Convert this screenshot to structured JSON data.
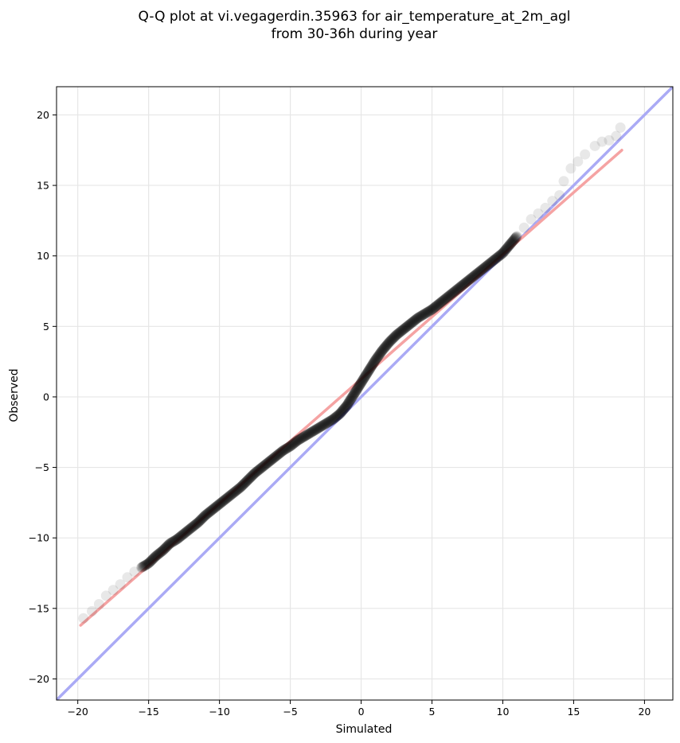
{
  "chart_data": {
    "type": "scatter",
    "title": [
      "Q-Q plot at vi.vegagerdin.35963 for air_temperature_at_2m_agl",
      "from 30-36h during year"
    ],
    "xlabel": "Simulated",
    "ylabel": "Observed",
    "xlim": [
      -21.5,
      22
    ],
    "ylim": [
      -21.5,
      22
    ],
    "xticks": [
      -20,
      -15,
      -10,
      -5,
      0,
      5,
      10,
      15,
      20
    ],
    "yticks": [
      -20,
      -15,
      -10,
      -5,
      0,
      5,
      10,
      15,
      20
    ],
    "xtick_labels": [
      "−20",
      "−15",
      "−10",
      "−5",
      "0",
      "5",
      "10",
      "15",
      "20"
    ],
    "ytick_labels": [
      "−20",
      "−15",
      "−10",
      "−5",
      "0",
      "5",
      "10",
      "15",
      "20"
    ],
    "grid": true,
    "reference_lines": [
      {
        "name": "",
        "color": "#aaaaf5",
        "x": [
          -21.5,
          22
        ],
        "y": [
          -21.5,
          22
        ]
      },
      {
        "name": "",
        "color": "#f5a3a3",
        "x": [
          -19.8,
          18.4
        ],
        "y": [
          -16.2,
          17.5
        ]
      }
    ],
    "quantile_points": {
      "color": "#000000",
      "x": [
        -19.6,
        -19.0,
        -18.5,
        -18.0,
        -17.5,
        -17.0,
        -16.5,
        -16.0,
        -15.5,
        -15.0,
        -14.5,
        -14.0,
        -13.5,
        -13.0,
        -12.5,
        -12.0,
        -11.5,
        -11.0,
        -10.5,
        -10.0,
        -9.5,
        -9.0,
        -8.5,
        -8.0,
        -7.5,
        -7.0,
        -6.5,
        -6.0,
        -5.5,
        -5.0,
        -4.5,
        -4.0,
        -3.5,
        -3.0,
        -2.5,
        -2.0,
        -1.5,
        -1.0,
        -0.5,
        0.0,
        0.5,
        1.0,
        1.5,
        2.0,
        2.5,
        3.0,
        3.5,
        4.0,
        4.5,
        5.0,
        5.5,
        6.0,
        6.5,
        7.0,
        7.5,
        8.0,
        8.5,
        9.0,
        9.5,
        10.0,
        10.5,
        11.0,
        11.5,
        12.0,
        12.5,
        13.0,
        13.5,
        14.0,
        14.3,
        14.8,
        15.3,
        15.8,
        16.5,
        17.0,
        17.5,
        18.0,
        18.3
      ],
      "y": [
        -15.7,
        -15.2,
        -14.7,
        -14.1,
        -13.7,
        -13.3,
        -12.8,
        -12.4,
        -12.1,
        -11.8,
        -11.3,
        -10.9,
        -10.4,
        -10.1,
        -9.7,
        -9.3,
        -8.9,
        -8.4,
        -8.0,
        -7.6,
        -7.2,
        -6.8,
        -6.4,
        -5.9,
        -5.4,
        -5.0,
        -4.6,
        -4.2,
        -3.8,
        -3.5,
        -3.1,
        -2.8,
        -2.5,
        -2.2,
        -1.9,
        -1.6,
        -1.2,
        -0.6,
        0.2,
        1.0,
        1.8,
        2.6,
        3.3,
        3.9,
        4.4,
        4.8,
        5.2,
        5.6,
        5.9,
        6.2,
        6.6,
        7.0,
        7.4,
        7.8,
        8.2,
        8.6,
        9.0,
        9.4,
        9.8,
        10.2,
        10.8,
        11.4,
        12.0,
        12.6,
        13.0,
        13.4,
        13.9,
        14.3,
        15.3,
        16.2,
        16.7,
        17.2,
        17.8,
        18.1,
        18.2,
        18.5,
        19.1
      ]
    }
  }
}
